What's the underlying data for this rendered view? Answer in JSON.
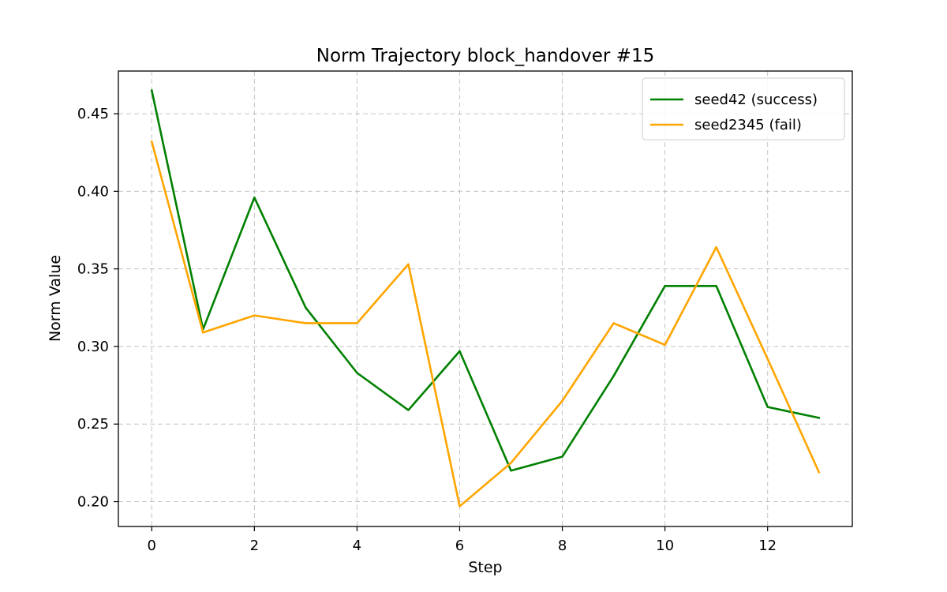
{
  "chart_data": {
    "type": "line",
    "title": "Norm Trajectory block_handover #15",
    "xlabel": "Step",
    "ylabel": "Norm Value",
    "xlim": [
      -0.65,
      13.65
    ],
    "ylim": [
      0.184,
      0.4775
    ],
    "xticks": [
      0,
      2,
      4,
      6,
      8,
      10,
      12
    ],
    "xtick_labels": [
      "0",
      "2",
      "4",
      "6",
      "8",
      "10",
      "12"
    ],
    "yticks": [
      0.2,
      0.25,
      0.3,
      0.35,
      0.4,
      0.45
    ],
    "ytick_labels": [
      "0.20",
      "0.25",
      "0.30",
      "0.35",
      "0.40",
      "0.45"
    ],
    "grid": true,
    "legend_position": "top-right",
    "x": [
      0,
      1,
      2,
      3,
      4,
      5,
      6,
      7,
      8,
      9,
      10,
      11,
      12,
      13
    ],
    "series": [
      {
        "name": "seed42 (success)",
        "color": "#008000",
        "values": [
          0.465,
          0.311,
          0.396,
          0.325,
          0.283,
          0.259,
          0.297,
          0.22,
          0.229,
          0.281,
          0.339,
          0.339,
          0.261,
          0.254
        ]
      },
      {
        "name": "seed2345 (fail)",
        "color": "#FFA500",
        "values": [
          0.432,
          0.309,
          0.32,
          0.315,
          0.315,
          0.353,
          0.197,
          0.225,
          0.265,
          0.315,
          0.301,
          0.364,
          0.292,
          0.219
        ]
      }
    ]
  }
}
